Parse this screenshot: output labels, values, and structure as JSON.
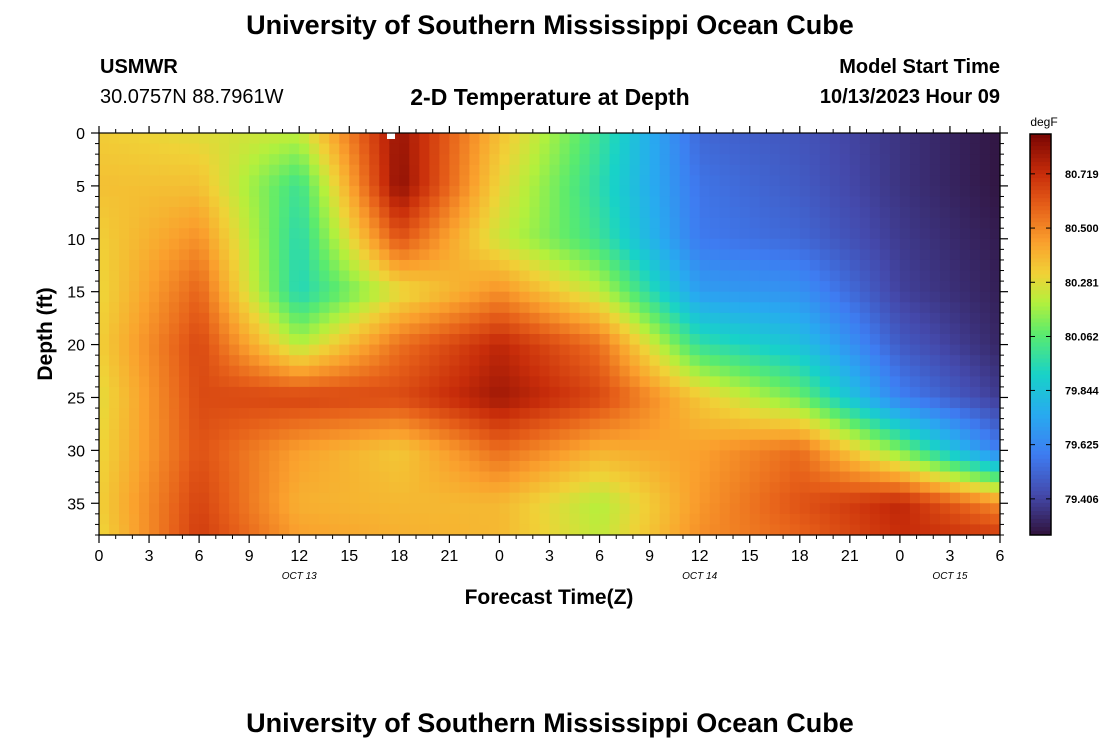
{
  "header": {
    "title": "University of Southern Mississippi Ocean Cube",
    "station": "USMWR",
    "coordinates": "30.0757N  88.7961W",
    "model_start_label": "Model Start Time",
    "model_start_value": "10/13/2023 Hour 09"
  },
  "footer": {
    "title": "University of Southern Mississippi Ocean Cube"
  },
  "chart_data": {
    "type": "heatmap",
    "title": "2-D Temperature at Depth",
    "xlabel": "Forecast Time(Z)",
    "ylabel": "Depth (ft)",
    "x_range_hours": [
      0,
      54
    ],
    "x_tick_labels": [
      "0",
      "3",
      "6",
      "9",
      "12",
      "15",
      "18",
      "21",
      "0",
      "3",
      "6",
      "9",
      "12",
      "15",
      "18",
      "21",
      "0",
      "3",
      "6"
    ],
    "date_labels": [
      {
        "hour": 12,
        "label": "OCT 13"
      },
      {
        "hour": 36,
        "label": "OCT 14"
      },
      {
        "hour": 51,
        "label": "OCT 15"
      }
    ],
    "y_range": [
      0,
      38
    ],
    "y_ticks": [
      0,
      5,
      10,
      15,
      20,
      25,
      30,
      35
    ],
    "y_reversed": true,
    "colorbar": {
      "unit": "degF",
      "min": 79.26,
      "max": 80.88,
      "tick_values": [
        80.719,
        80.5,
        80.281,
        80.062,
        79.844,
        79.625,
        79.406
      ],
      "tick_labels": [
        "80.719",
        "80.500",
        "80.281",
        "80.062",
        "79.844",
        "79.625",
        "79.406"
      ]
    },
    "grid": {
      "hours": [
        0,
        6,
        12,
        18,
        24,
        30,
        36,
        42,
        48,
        54
      ],
      "depths": [
        0,
        5,
        10,
        15,
        20,
        25,
        30,
        35,
        38
      ],
      "values": [
        [
          80.33,
          80.36,
          80.32,
          80.3,
          80.32,
          80.28,
          80.3,
          80.32,
          80.3
        ],
        [
          80.28,
          80.36,
          80.48,
          80.58,
          80.65,
          80.64,
          80.62,
          80.66,
          80.68
        ],
        [
          80.22,
          80.0,
          79.95,
          79.93,
          80.2,
          80.66,
          80.44,
          80.4,
          80.44
        ],
        [
          80.82,
          80.84,
          80.62,
          80.28,
          80.55,
          80.64,
          80.34,
          80.38,
          80.4
        ],
        [
          80.36,
          80.3,
          80.24,
          80.48,
          80.74,
          80.8,
          80.56,
          80.38,
          80.38
        ],
        [
          80.0,
          79.96,
          80.0,
          80.22,
          80.55,
          80.65,
          80.4,
          80.2,
          80.22
        ],
        [
          79.52,
          79.56,
          79.58,
          79.7,
          79.98,
          80.34,
          80.44,
          80.46,
          80.48
        ],
        [
          79.46,
          79.48,
          79.52,
          79.66,
          79.84,
          80.1,
          80.56,
          80.62,
          80.58
        ],
        [
          79.36,
          79.36,
          79.38,
          79.4,
          79.48,
          79.6,
          80.12,
          80.74,
          80.72
        ],
        [
          79.27,
          79.27,
          79.29,
          79.3,
          79.32,
          79.38,
          79.58,
          80.48,
          80.68
        ]
      ]
    },
    "marker_hour": 17.5
  }
}
